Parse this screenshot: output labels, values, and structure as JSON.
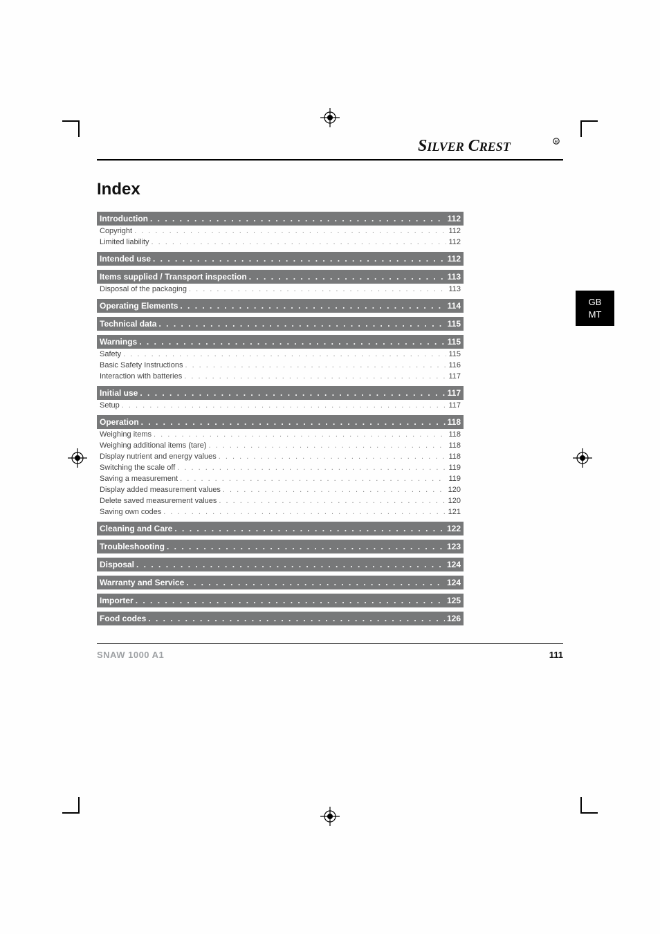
{
  "brand": "SILVER CREST",
  "index_title": "Index",
  "side_tab": {
    "line1": "GB",
    "line2": "MT"
  },
  "footer": {
    "model": "SNAW 1000 A1",
    "page": "111"
  },
  "toc": [
    {
      "type": "head",
      "title": "Introduction",
      "page": "112"
    },
    {
      "type": "sub",
      "title": "Copyright",
      "page": "112"
    },
    {
      "type": "sub",
      "title": "Limited liability",
      "page": "112"
    },
    {
      "type": "gap"
    },
    {
      "type": "head",
      "title": "Intended use",
      "page": "112"
    },
    {
      "type": "gap"
    },
    {
      "type": "head",
      "title": "Items supplied / Transport inspection",
      "page": "113"
    },
    {
      "type": "sub",
      "title": "Disposal of the packaging",
      "page": "113"
    },
    {
      "type": "gap"
    },
    {
      "type": "head",
      "title": "Operating Elements",
      "page": "114"
    },
    {
      "type": "gap"
    },
    {
      "type": "head",
      "title": "Technical data",
      "page": "115"
    },
    {
      "type": "gap"
    },
    {
      "type": "head",
      "title": "Warnings",
      "page": "115"
    },
    {
      "type": "sub",
      "title": "Safety",
      "page": "115"
    },
    {
      "type": "sub",
      "title": "Basic Safety Instructions",
      "page": "116"
    },
    {
      "type": "sub",
      "title": "Interaction with batteries",
      "page": "117"
    },
    {
      "type": "gap"
    },
    {
      "type": "head",
      "title": "Initial use",
      "page": "117"
    },
    {
      "type": "sub",
      "title": "Setup",
      "page": "117"
    },
    {
      "type": "gap"
    },
    {
      "type": "head",
      "title": "Operation",
      "page": "118"
    },
    {
      "type": "sub",
      "title": "Weighing items",
      "page": "118"
    },
    {
      "type": "sub",
      "title": "Weighing additional items (tare)",
      "page": "118"
    },
    {
      "type": "sub",
      "title": "Display nutrient and energy values",
      "page": "118"
    },
    {
      "type": "sub",
      "title": "Switching the scale off",
      "page": "119"
    },
    {
      "type": "sub",
      "title": "Saving a measurement",
      "page": "119"
    },
    {
      "type": "sub",
      "title": "Display added measurement values",
      "page": "120"
    },
    {
      "type": "sub",
      "title": "Delete saved measurement values",
      "page": "120"
    },
    {
      "type": "sub",
      "title": "Saving own codes",
      "page": "121"
    },
    {
      "type": "gap"
    },
    {
      "type": "head",
      "title": "Cleaning and Care",
      "page": "122"
    },
    {
      "type": "gap"
    },
    {
      "type": "head",
      "title": "Troubleshooting",
      "page": "123"
    },
    {
      "type": "gap"
    },
    {
      "type": "head",
      "title": "Disposal",
      "page": "124"
    },
    {
      "type": "gap"
    },
    {
      "type": "head",
      "title": "Warranty and Service",
      "page": "124"
    },
    {
      "type": "gap"
    },
    {
      "type": "head",
      "title": "Importer",
      "page": "125"
    },
    {
      "type": "gap"
    },
    {
      "type": "head",
      "title": "Food codes",
      "page": "126"
    }
  ],
  "dot_leader_head": " .  .  .  .  .  .  .  .  .  .  .  .  .  .  .  .  .  .  .  .  .  .  .  .  .  .  .  .  .  .  .  .  .  .  .  .  .  .  .  .  .  .  .  .  .  .  .  .  .  .  .  .  .  .  .  .  .  .  .  .  .  .  .  .  .  .  .  .  .  .  .  .  .  .  .  .  .  .  .  .  .  .  .  .  .  .  .  .  .  .  .  .  .  .  .  .  .  .  .  . ",
  "dot_leader_sub": " . . . . . . . . . . . . . . . . . . . . . . . . . . . . . . . . . . . . . . . . . . . . . . . . . . . . . . . . . . . . . . . . . . . . . . . . . . . . . . . . . . . . . . . . . . . . . . . . . . . . . . . . . . . . . . . . . . . . . . . . ",
  "colors": {
    "section_bg": "#777879",
    "section_fg": "#ffffff",
    "sub_fg": "#444444",
    "footer_model_fg": "#9ea1a4",
    "rule": "#000000"
  },
  "typography": {
    "index_title_pt": 18,
    "section_head_pt": 9,
    "sub_pt": 8.5,
    "footer_pt": 10
  }
}
